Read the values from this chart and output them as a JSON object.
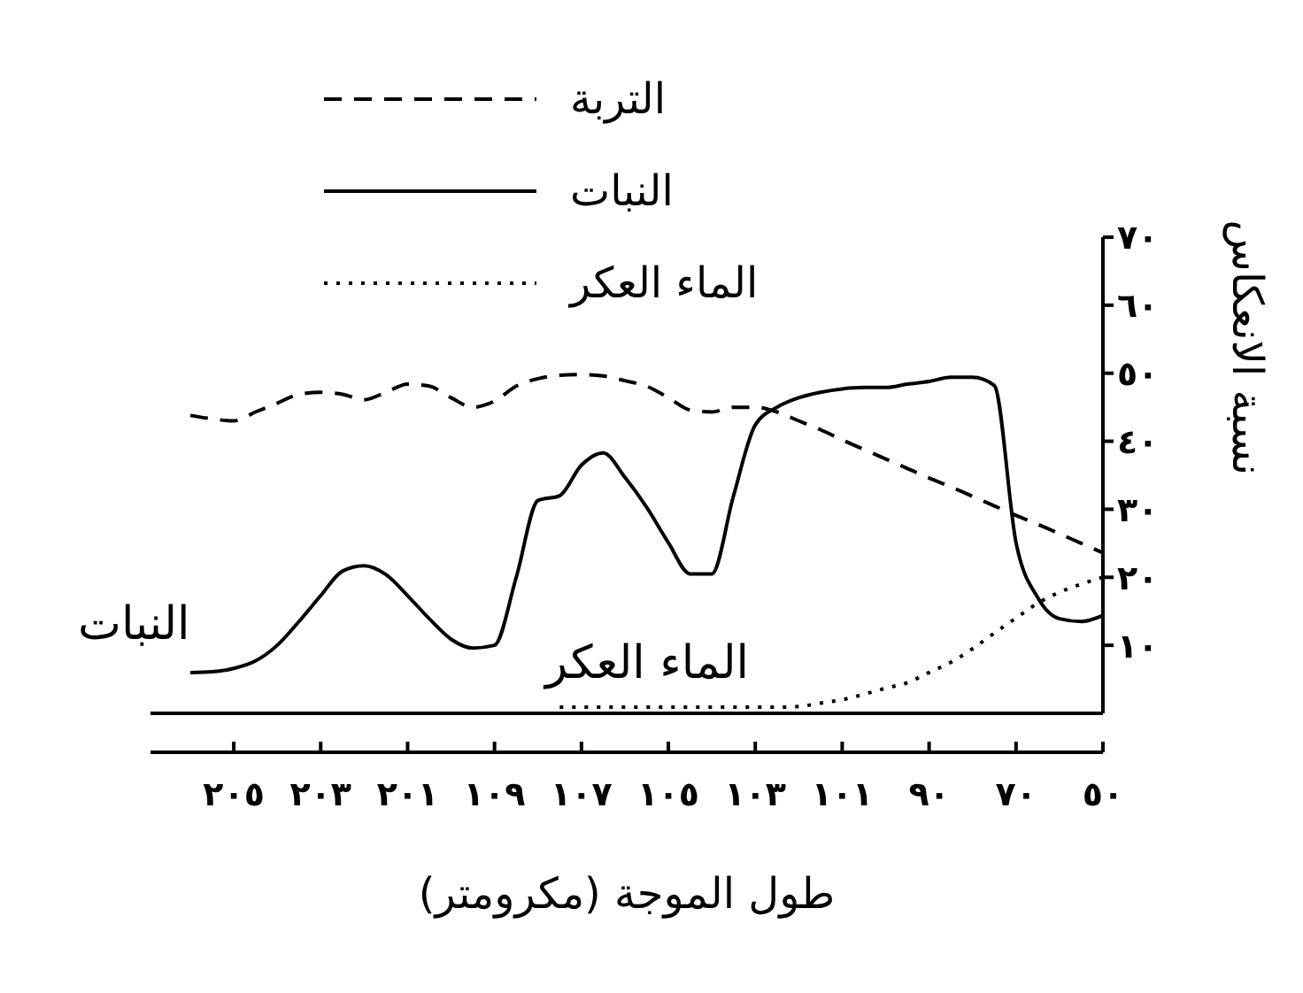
{
  "chart_data": {
    "type": "line",
    "xlabel": "طول الموجة (مكرومتر)",
    "ylabel": "نسبة الانعكاس",
    "categories": [
      null,
      null,
      "٢٠٥",
      null,
      null,
      null,
      "٢٠٣",
      null,
      null,
      null,
      "٢٠١",
      null,
      null,
      null,
      "١٠٩",
      null,
      null,
      null,
      "١٠٧",
      null,
      null,
      null,
      "١٠٥",
      null,
      null,
      null,
      "١٠٣",
      null,
      null,
      null,
      "١٠١",
      null,
      null,
      null,
      "٩٠",
      null,
      null,
      null,
      "٧٠",
      null,
      null,
      null,
      "٥٠"
    ],
    "series": [
      {
        "name": "التربة",
        "color": "#000000",
        "line_style": "dashed",
        "values": [
          43.8,
          43.3,
          43,
          44.3,
          45.6,
          46.9,
          47.2,
          46.9,
          46.1,
          47.2,
          48.4,
          48.1,
          46.4,
          45,
          45.9,
          48.1,
          49.2,
          49.7,
          49.8,
          49.6,
          48.9,
          48.1,
          46.4,
          44.6,
          44.3,
          45,
          45,
          44.3,
          43,
          41.7,
          40.2,
          38.8,
          37.4,
          36,
          34.6,
          33.3,
          31.9,
          30.5,
          29.1,
          27.8,
          26.4,
          25,
          23.6
        ]
      },
      {
        "name": "النبات",
        "color": "#000000",
        "line_style": "solid",
        "values": [
          6,
          6.1,
          6.6,
          7.7,
          10,
          13.5,
          17.3,
          20.9,
          21.7,
          20.4,
          17.3,
          13.9,
          10.9,
          9.6,
          10,
          20,
          31.3,
          32,
          36.5,
          38.3,
          34.7,
          30.3,
          25.1,
          20.5,
          20.5,
          32,
          42.4,
          45,
          46.4,
          47.2,
          47.7,
          47.9,
          47.9,
          48.4,
          48.8,
          49.4,
          49.4,
          48.2,
          25.1,
          17,
          13.9,
          13.5,
          14.4
        ]
      },
      {
        "name": "الماء العكر",
        "color": "#000000",
        "line_style": "dotted",
        "values": [
          null,
          null,
          null,
          null,
          null,
          null,
          null,
          null,
          null,
          null,
          null,
          null,
          null,
          null,
          null,
          null,
          null,
          0.9,
          0.9,
          0.9,
          0.9,
          0.9,
          0.9,
          0.9,
          0.9,
          0.9,
          0.9,
          0.9,
          1,
          1.5,
          2,
          2.8,
          3.7,
          4.5,
          6,
          7.5,
          9.5,
          11.8,
          14,
          16.2,
          17.8,
          19,
          20
        ]
      }
    ],
    "ylim": [
      0,
      70
    ],
    "yticks": [
      {
        "value": 10,
        "label": "١٠"
      },
      {
        "value": 20,
        "label": "٢٠"
      },
      {
        "value": 30,
        "label": "٣٠"
      },
      {
        "value": 40,
        "label": "٤٠"
      },
      {
        "value": 50,
        "label": "٥٠"
      },
      {
        "value": 60,
        "label": "٦٠"
      },
      {
        "value": 70,
        "label": "٧٠"
      }
    ],
    "legend": "top left",
    "marker": "none",
    "annotations": [
      "النبات",
      "الماء العكر"
    ]
  }
}
